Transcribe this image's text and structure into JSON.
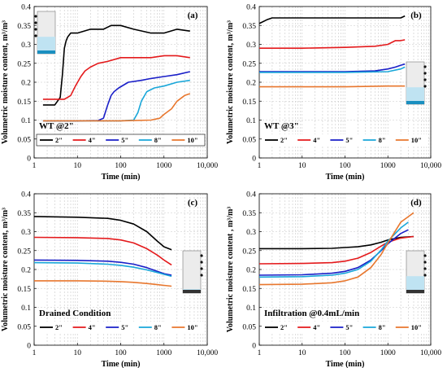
{
  "colors": {
    "2in": "#000000",
    "4in": "#e41a1c",
    "5in": "#1a1fc8",
    "8in": "#1aa7d9",
    "10in": "#e8772e"
  },
  "chart_data": [
    {
      "type": "line",
      "panel": "(a)",
      "condition": "WT @2\"",
      "xscale": "log",
      "xlabel": "Time (min)",
      "ylabel": "Volumetric moisture content, m³/m³",
      "xlim": [
        1,
        10000
      ],
      "ylim": [
        0,
        0.4
      ],
      "xticks": [
        "1",
        "10",
        "100",
        "1000",
        "10,000"
      ],
      "yticks": [
        "0",
        "0.05",
        "0.1",
        "0.15",
        "0.2",
        "0.25",
        "0.3",
        "0.35",
        "0.4"
      ],
      "grid": true,
      "legend_position": "bottom",
      "legend_box": true,
      "series": [
        {
          "name": "2\"",
          "color_key": "2in",
          "x": [
            1.6,
            2,
            3,
            4,
            4.5,
            5,
            5.5,
            6,
            7,
            10,
            20,
            40,
            60,
            100,
            200,
            500,
            1000,
            2000,
            4000
          ],
          "y": [
            0.14,
            0.14,
            0.14,
            0.16,
            0.22,
            0.29,
            0.31,
            0.32,
            0.33,
            0.33,
            0.34,
            0.34,
            0.35,
            0.35,
            0.34,
            0.33,
            0.33,
            0.34,
            0.335
          ]
        },
        {
          "name": "4\"",
          "color_key": "4in",
          "x": [
            1.6,
            3,
            5,
            7,
            9,
            12,
            15,
            20,
            30,
            50,
            100,
            200,
            500,
            1000,
            2000,
            4000
          ],
          "y": [
            0.155,
            0.155,
            0.155,
            0.165,
            0.19,
            0.215,
            0.23,
            0.24,
            0.25,
            0.255,
            0.265,
            0.265,
            0.265,
            0.27,
            0.27,
            0.265
          ]
        },
        {
          "name": "5\"",
          "color_key": "5in",
          "x": [
            1.6,
            10,
            30,
            40,
            50,
            60,
            70,
            90,
            150,
            300,
            500,
            1000,
            2000,
            4000
          ],
          "y": [
            0.098,
            0.098,
            0.099,
            0.105,
            0.14,
            0.165,
            0.175,
            0.185,
            0.2,
            0.205,
            0.21,
            0.215,
            0.22,
            0.228
          ]
        },
        {
          "name": "8\"",
          "color_key": "8in",
          "x": [
            1.6,
            10,
            100,
            200,
            250,
            300,
            400,
            600,
            1000,
            2000,
            4000
          ],
          "y": [
            0.098,
            0.098,
            0.098,
            0.1,
            0.12,
            0.15,
            0.175,
            0.185,
            0.19,
            0.2,
            0.205
          ]
        },
        {
          "name": "10\"",
          "color_key": "10in",
          "x": [
            1.6,
            10,
            100,
            500,
            800,
            1000,
            1500,
            2000,
            3000,
            4000
          ],
          "y": [
            0.098,
            0.098,
            0.098,
            0.1,
            0.105,
            0.115,
            0.13,
            0.15,
            0.165,
            0.17
          ]
        }
      ]
    },
    {
      "type": "line",
      "panel": "(b)",
      "condition": "WT @3\"",
      "xscale": "log",
      "xlabel": "Time (min)",
      "ylabel": "Volumetric moisture content, m³/m³",
      "xlim": [
        1,
        10000
      ],
      "ylim": [
        0,
        0.4
      ],
      "xticks": [
        "1",
        "10",
        "100",
        "1000",
        "10,000"
      ],
      "yticks": [
        "0",
        "0.05",
        "0.1",
        "0.15",
        "0.2",
        "0.25",
        "0.3",
        "0.35",
        "0.4"
      ],
      "grid": true,
      "legend_position": "bottom",
      "legend_box": false,
      "series": [
        {
          "name": "2\"",
          "color_key": "2in",
          "x": [
            1,
            1.5,
            2,
            3,
            10,
            100,
            1000,
            2000,
            2500
          ],
          "y": [
            0.355,
            0.365,
            0.37,
            0.37,
            0.37,
            0.37,
            0.37,
            0.37,
            0.375
          ]
        },
        {
          "name": "4\"",
          "color_key": "4in",
          "x": [
            1,
            10,
            100,
            500,
            1000,
            1500,
            2000,
            2500
          ],
          "y": [
            0.29,
            0.29,
            0.292,
            0.295,
            0.3,
            0.31,
            0.31,
            0.312
          ]
        },
        {
          "name": "5\"",
          "color_key": "5in",
          "x": [
            1,
            10,
            100,
            500,
            1000,
            1500,
            2000,
            2500
          ],
          "y": [
            0.228,
            0.228,
            0.228,
            0.23,
            0.235,
            0.24,
            0.245,
            0.248
          ]
        },
        {
          "name": "8\"",
          "color_key": "8in",
          "x": [
            1,
            10,
            100,
            1000,
            2000,
            2500
          ],
          "y": [
            0.226,
            0.226,
            0.226,
            0.228,
            0.235,
            0.24
          ]
        },
        {
          "name": "10\"",
          "color_key": "10in",
          "x": [
            1,
            10,
            100,
            1000,
            2000,
            2500
          ],
          "y": [
            0.188,
            0.188,
            0.188,
            0.19,
            0.19,
            0.19
          ]
        }
      ]
    },
    {
      "type": "line",
      "panel": "(c)",
      "condition": "Drained Condition",
      "xscale": "log",
      "xlabel": "Time (min)",
      "ylabel": "Volumetric moisture content, m³/m³",
      "xlim": [
        1,
        10000
      ],
      "ylim": [
        0,
        0.4
      ],
      "xticks": [
        "1",
        "10",
        "100",
        "1000",
        "10,000"
      ],
      "yticks": [
        "0",
        "0.05",
        "0.1",
        "0.15",
        "0.2",
        "0.25",
        "0.3",
        "0.35",
        "0.4"
      ],
      "grid": true,
      "legend_position": "bottom",
      "legend_box": false,
      "series": [
        {
          "name": "2\"",
          "color_key": "2in",
          "x": [
            1,
            10,
            50,
            100,
            200,
            400,
            700,
            1000,
            1500
          ],
          "y": [
            0.34,
            0.338,
            0.335,
            0.33,
            0.32,
            0.3,
            0.275,
            0.26,
            0.252
          ]
        },
        {
          "name": "4\"",
          "color_key": "4in",
          "x": [
            1,
            10,
            50,
            100,
            200,
            400,
            700,
            1000,
            1500
          ],
          "y": [
            0.285,
            0.284,
            0.282,
            0.278,
            0.27,
            0.255,
            0.238,
            0.225,
            0.212
          ]
        },
        {
          "name": "5\"",
          "color_key": "5in",
          "x": [
            1,
            10,
            50,
            100,
            200,
            400,
            700,
            1000,
            1500
          ],
          "y": [
            0.225,
            0.224,
            0.222,
            0.219,
            0.214,
            0.205,
            0.195,
            0.189,
            0.185
          ]
        },
        {
          "name": "8\"",
          "color_key": "8in",
          "x": [
            1,
            10,
            50,
            100,
            200,
            400,
            700,
            1000,
            1500
          ],
          "y": [
            0.218,
            0.217,
            0.214,
            0.211,
            0.206,
            0.199,
            0.192,
            0.187,
            0.182
          ]
        },
        {
          "name": "10\"",
          "color_key": "10in",
          "x": [
            1,
            10,
            50,
            100,
            200,
            400,
            700,
            1000,
            1500
          ],
          "y": [
            0.17,
            0.17,
            0.169,
            0.168,
            0.166,
            0.163,
            0.16,
            0.158,
            0.156
          ]
        }
      ]
    },
    {
      "type": "line",
      "panel": "(d)",
      "condition": "Infiltration @0.4mL/min",
      "xscale": "log",
      "xlabel": "Time (min)",
      "ylabel": "Volumetric moisture content , m³/m³",
      "xlim": [
        1,
        10000
      ],
      "ylim": [
        0,
        0.4
      ],
      "xticks": [
        "1",
        "10",
        "100",
        "1000",
        "10,000"
      ],
      "yticks": [
        "0",
        "0.05",
        "0.1",
        "0.15",
        "0.2",
        "0.25",
        "0.3",
        "0.35",
        "0.4"
      ],
      "grid": true,
      "legend_position": "bottom",
      "legend_box": false,
      "series": [
        {
          "name": "2\"",
          "color_key": "2in",
          "x": [
            1,
            10,
            50,
            100,
            200,
            400,
            700,
            1000,
            2000,
            4000
          ],
          "y": [
            0.255,
            0.255,
            0.256,
            0.258,
            0.26,
            0.265,
            0.272,
            0.278,
            0.285,
            0.287
          ]
        },
        {
          "name": "4\"",
          "color_key": "4in",
          "x": [
            1,
            10,
            50,
            100,
            200,
            400,
            700,
            1000,
            2000,
            4000
          ],
          "y": [
            0.215,
            0.216,
            0.218,
            0.222,
            0.23,
            0.245,
            0.262,
            0.272,
            0.283,
            0.287
          ]
        },
        {
          "name": "5\"",
          "color_key": "5in",
          "x": [
            1,
            10,
            50,
            100,
            200,
            400,
            700,
            1000,
            2000,
            3000
          ],
          "y": [
            0.185,
            0.186,
            0.19,
            0.195,
            0.205,
            0.225,
            0.25,
            0.268,
            0.295,
            0.305
          ]
        },
        {
          "name": "8\"",
          "color_key": "8in",
          "x": [
            1,
            10,
            50,
            100,
            200,
            400,
            700,
            1000,
            2000,
            3000
          ],
          "y": [
            0.18,
            0.181,
            0.185,
            0.19,
            0.2,
            0.222,
            0.252,
            0.275,
            0.31,
            0.325
          ]
        },
        {
          "name": "10\"",
          "color_key": "10in",
          "x": [
            1,
            10,
            50,
            100,
            200,
            400,
            700,
            1000,
            2000,
            4000
          ],
          "y": [
            0.16,
            0.161,
            0.165,
            0.17,
            0.18,
            0.205,
            0.24,
            0.27,
            0.325,
            0.35
          ]
        }
      ]
    }
  ]
}
